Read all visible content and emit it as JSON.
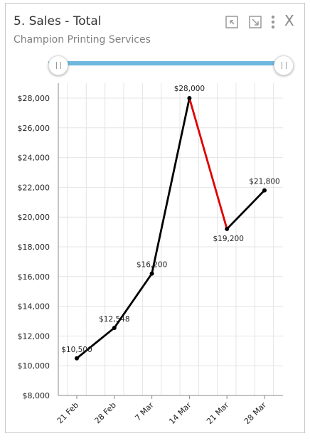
{
  "widget": {
    "title": "5. Sales - Total",
    "subtitle": "Champion Printing Services",
    "icons": [
      "collapse-icon",
      "expand-icon",
      "more-vertical-icon",
      "close-icon"
    ],
    "close_label": "X"
  },
  "colors": {
    "line": "#000000",
    "decline": "#e00000",
    "slider": "#6eb7de",
    "grid": "#e4e4e4"
  },
  "chart_data": {
    "type": "line",
    "categories": [
      "21 Feb",
      "28 Feb",
      "7 Mar",
      "14 Mar",
      "21 Mar",
      "28 Mar"
    ],
    "values": [
      10500,
      12548,
      16200,
      28000,
      19200,
      21800
    ],
    "data_labels": [
      "$10,500",
      "$12,548",
      "$16,200",
      "$28,000",
      "$19,200",
      "$21,800"
    ],
    "y_ticks": [
      "$8,000",
      "$10,000",
      "$12,000",
      "$14,000",
      "$16,000",
      "$18,000",
      "$20,000",
      "$22,000",
      "$24,000",
      "$26,000",
      "$28,000"
    ],
    "ylim": [
      8000,
      29000
    ],
    "grid": true,
    "decline_segments_highlighted": true
  }
}
